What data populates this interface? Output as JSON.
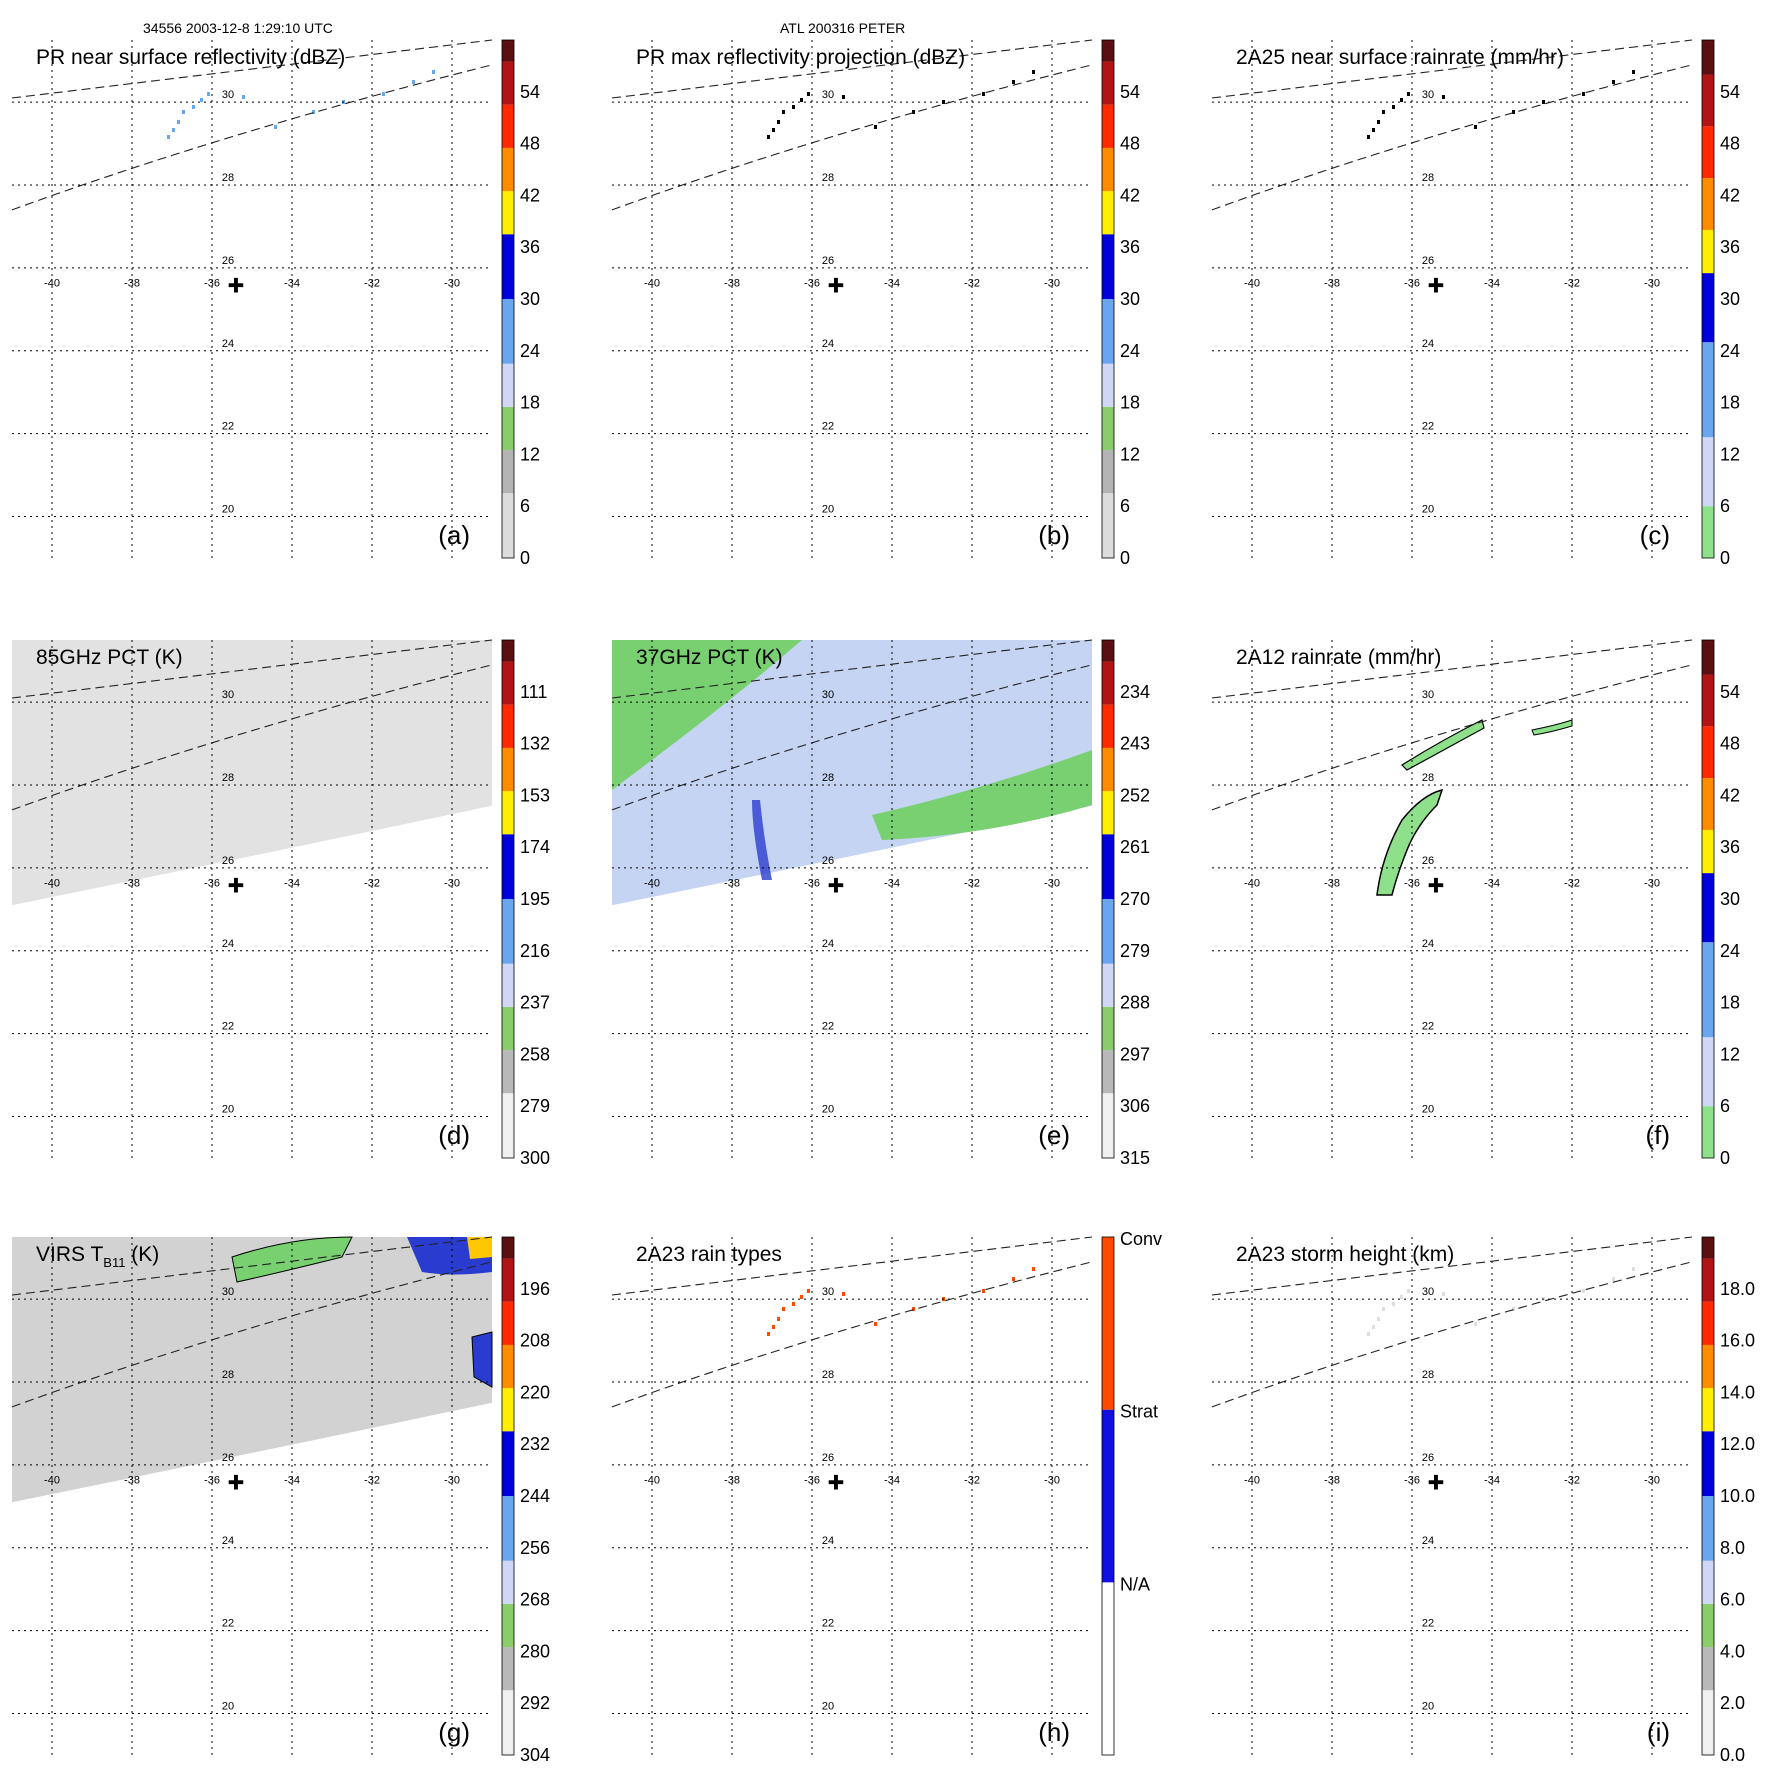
{
  "header": {
    "left": "34556 2003-12-8 1:29:10 UTC",
    "center": "ATL 200316 PETER"
  },
  "chart_data": {
    "type": "heatmap",
    "grid": {
      "lon_ticks": [
        -40,
        -38,
        -36,
        -34,
        -32,
        -30
      ],
      "lat_ticks": [
        30,
        28,
        26,
        24,
        22,
        20
      ],
      "lon_range": [
        -41,
        -29
      ],
      "lat_range": [
        19,
        31.5
      ],
      "center_marker": {
        "lon": -35.4,
        "lat": 25.6,
        "symbol": "✚"
      }
    },
    "panels": [
      {
        "id": "a",
        "title_parts": [
          "PR near surface reflectivity (dBZ)"
        ],
        "label": "(a)",
        "swath": "pr",
        "colorbar": {
          "ticks": [
            "54",
            "48",
            "42",
            "36",
            "30",
            "24",
            "18",
            "12",
            "6",
            "0"
          ],
          "colors": [
            "#dcdcdc",
            "#b4b4b4",
            "#8acb6c",
            "#cfd7f5",
            "#6aa6f0",
            "#0000d8",
            "#ffee00",
            "#ff8c00",
            "#ff2a00",
            "#b01414",
            "#5a1010"
          ],
          "segments": [
            3,
            2,
            2,
            2,
            3,
            3,
            2,
            2,
            2,
            2,
            1
          ]
        }
      },
      {
        "id": "b",
        "title_parts": [
          "PR max reflectivity projection (dBZ)"
        ],
        "label": "(b)",
        "swath": "pr",
        "colorbar": {
          "ticks": [
            "54",
            "48",
            "42",
            "36",
            "30",
            "24",
            "18",
            "12",
            "6",
            "0"
          ],
          "colors": [
            "#dcdcdc",
            "#b4b4b4",
            "#8acb6c",
            "#cfd7f5",
            "#6aa6f0",
            "#0000d8",
            "#ffee00",
            "#ff8c00",
            "#ff2a00",
            "#b01414",
            "#5a1010"
          ],
          "segments": [
            3,
            2,
            2,
            2,
            3,
            3,
            2,
            2,
            2,
            2,
            1
          ]
        }
      },
      {
        "id": "c",
        "title_parts": [
          "2A25 near surface rainrate (mm/hr)"
        ],
        "label": "(c)",
        "swath": "pr",
        "colorbar": {
          "ticks": [
            "54",
            "48",
            "42",
            "36",
            "30",
            "24",
            "18",
            "12",
            "6",
            "0"
          ],
          "colors": [
            "#8ee08a",
            "#cfd7f5",
            "#6aa6f0",
            "#0000d8",
            "#ffee00",
            "#ff8c00",
            "#ff2a00",
            "#b01414",
            "#5a1010"
          ],
          "segments": [
            1.2,
            1.6,
            2.2,
            1.6,
            1,
            1.2,
            1.2,
            1.2,
            0.8
          ]
        }
      },
      {
        "id": "d",
        "title_parts": [
          "85GHz PCT (K)"
        ],
        "label": "(d)",
        "swath": "tmi",
        "fill": "#e2e2e2",
        "colorbar": {
          "ticks": [
            "111",
            "132",
            "153",
            "174",
            "195",
            "216",
            "237",
            "258",
            "279",
            "300"
          ],
          "colors": [
            "#f0f0f0",
            "#b8b8b8",
            "#8acb6c",
            "#cfd7f5",
            "#6aa6f0",
            "#0000d8",
            "#ffee00",
            "#ff8c00",
            "#ff2a00",
            "#b01414",
            "#5a1010"
          ],
          "segments": [
            3,
            2,
            2,
            2,
            3,
            3,
            2,
            2,
            2,
            2,
            1
          ]
        }
      },
      {
        "id": "e",
        "title_parts": [
          "37GHz PCT (K)"
        ],
        "label": "(e)",
        "swath": "tmi",
        "fill": "#c6d4f4",
        "colorbar": {
          "ticks": [
            "234",
            "243",
            "252",
            "261",
            "270",
            "279",
            "288",
            "297",
            "306",
            "315"
          ],
          "colors": [
            "#f0f0f0",
            "#b8b8b8",
            "#8acb6c",
            "#cfd7f5",
            "#6aa6f0",
            "#0000d8",
            "#ffee00",
            "#ff8c00",
            "#ff2a00",
            "#b01414",
            "#5a1010"
          ],
          "segments": [
            3,
            2,
            2,
            2,
            3,
            3,
            2,
            2,
            2,
            2,
            1
          ]
        }
      },
      {
        "id": "f",
        "title_parts": [
          "2A12 rainrate (mm/hr)"
        ],
        "label": "(f)",
        "swath": "pr",
        "colorbar": {
          "ticks": [
            "54",
            "48",
            "42",
            "36",
            "30",
            "24",
            "18",
            "12",
            "6",
            "0"
          ],
          "colors": [
            "#8ee08a",
            "#cfd7f5",
            "#6aa6f0",
            "#0000d8",
            "#ffee00",
            "#ff8c00",
            "#ff2a00",
            "#b01414",
            "#5a1010"
          ],
          "segments": [
            1.2,
            1.6,
            2.2,
            1.6,
            1,
            1.2,
            1.2,
            1.2,
            0.8
          ]
        }
      },
      {
        "id": "g",
        "title_parts": [
          "VIRS T",
          "B11",
          " (K)"
        ],
        "label": "(g)",
        "swath": "tmi",
        "fill": "#d2d2d2",
        "colorbar": {
          "ticks": [
            "196",
            "208",
            "220",
            "232",
            "244",
            "256",
            "268",
            "280",
            "292",
            "304"
          ],
          "colors": [
            "#f0f0f0",
            "#b8b8b8",
            "#8acb6c",
            "#cfd7f5",
            "#6aa6f0",
            "#0000d8",
            "#ffee00",
            "#ff8c00",
            "#ff2a00",
            "#b01414",
            "#5a1010"
          ],
          "segments": [
            3,
            2,
            2,
            2,
            3,
            3,
            2,
            2,
            2,
            2,
            1
          ]
        }
      },
      {
        "id": "h",
        "title_parts": [
          "2A23 rain types"
        ],
        "label": "(h)",
        "swath": "pr",
        "colorbar": {
          "ticks": [
            "Conv",
            "Strat",
            "N/A"
          ],
          "colors": [
            "#ffffff",
            "#1010e0",
            "#ff4a00"
          ],
          "segments": [
            1,
            1,
            1
          ]
        }
      },
      {
        "id": "i",
        "title_parts": [
          "2A23 storm height (km)"
        ],
        "label": "(i)",
        "swath": "pr",
        "colorbar": {
          "ticks": [
            "18.0",
            "16.0",
            "14.0",
            "12.0",
            "10.0",
            "8.0",
            "6.0",
            "4.0",
            "2.0",
            "0.0"
          ],
          "colors": [
            "#f0f0f0",
            "#b8b8b8",
            "#8acb6c",
            "#cfd7f5",
            "#6aa6f0",
            "#0000d8",
            "#ffee00",
            "#ff8c00",
            "#ff2a00",
            "#b01414",
            "#5a1010"
          ],
          "segments": [
            3,
            2,
            2,
            2,
            3,
            3,
            2,
            2,
            2,
            2,
            1
          ]
        }
      }
    ]
  }
}
